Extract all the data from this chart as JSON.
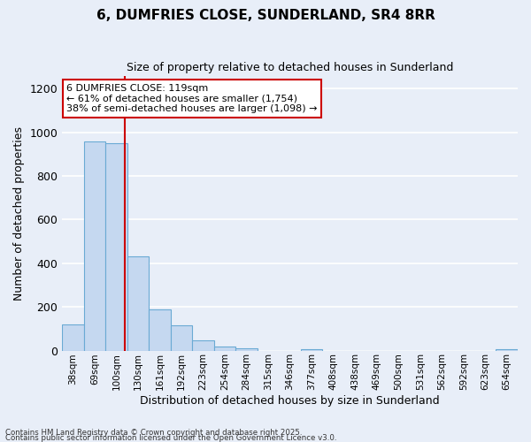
{
  "title": "6, DUMFRIES CLOSE, SUNDERLAND, SR4 8RR",
  "subtitle": "Size of property relative to detached houses in Sunderland",
  "xlabel": "Distribution of detached houses by size in Sunderland",
  "ylabel": "Number of detached properties",
  "bar_color": "#c5d8f0",
  "bar_edge_color": "#6aaad4",
  "background_color": "#e8eef8",
  "grid_color": "#ffffff",
  "categories": [
    "38sqm",
    "69sqm",
    "100sqm",
    "130sqm",
    "161sqm",
    "192sqm",
    "223sqm",
    "254sqm",
    "284sqm",
    "315sqm",
    "346sqm",
    "377sqm",
    "408sqm",
    "438sqm",
    "469sqm",
    "500sqm",
    "531sqm",
    "562sqm",
    "592sqm",
    "623sqm",
    "654sqm"
  ],
  "values": [
    120,
    960,
    950,
    430,
    190,
    115,
    45,
    20,
    10,
    0,
    0,
    5,
    0,
    0,
    0,
    0,
    0,
    0,
    0,
    0,
    5
  ],
  "ylim": [
    0,
    1260
  ],
  "yticks": [
    0,
    200,
    400,
    600,
    800,
    1000,
    1200
  ],
  "vline_x": 2.87,
  "annotation_title": "6 DUMFRIES CLOSE: 119sqm",
  "annotation_line1": "← 61% of detached houses are smaller (1,754)",
  "annotation_line2": "38% of semi-detached houses are larger (1,098) →",
  "annotation_box_color": "#ffffff",
  "annotation_box_edge_color": "#cc0000",
  "vline_color": "#cc0000",
  "footnote1": "Contains HM Land Registry data © Crown copyright and database right 2025.",
  "footnote2": "Contains public sector information licensed under the Open Government Licence v3.0."
}
